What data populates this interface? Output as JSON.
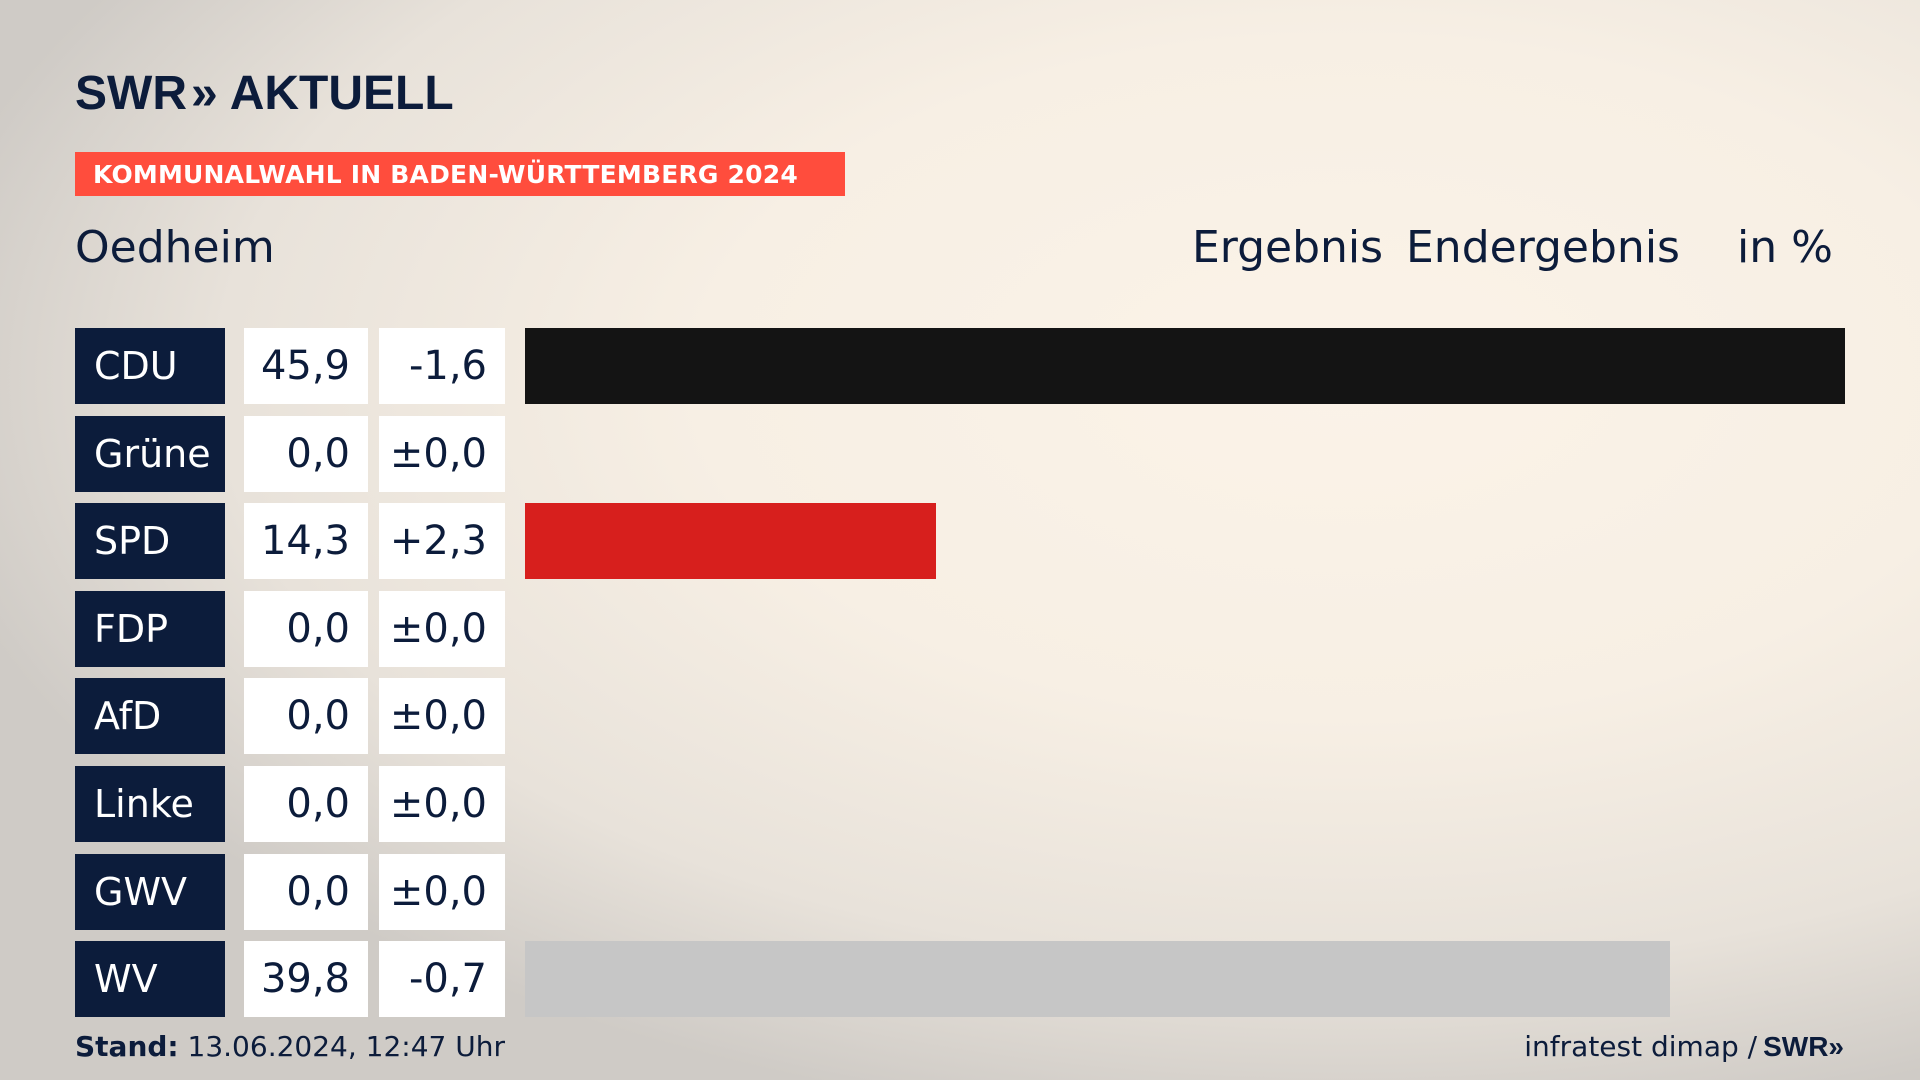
{
  "logo": {
    "brand": "SWR",
    "chevrons": "»",
    "product": "AKTUELL"
  },
  "banner": "KOMMUNALWAHL IN BADEN-WÜRTTEMBERG 2024",
  "place": "Oedheim",
  "headers": {
    "result": "Ergebnis",
    "final": "Endergebnis",
    "unit": "in %"
  },
  "footer": {
    "stand_label": "Stand:",
    "stand_value": "13.06.2024, 12:47 Uhr",
    "source": "infratest dimap /",
    "source_brand": "SWR",
    "source_chevrons": "»"
  },
  "chart_data": {
    "type": "bar",
    "orientation": "horizontal",
    "categories": [
      "CDU",
      "Grüne",
      "SPD",
      "FDP",
      "AfD",
      "Linke",
      "GWV",
      "WV"
    ],
    "values": [
      45.9,
      0.0,
      14.3,
      0.0,
      0.0,
      0.0,
      0.0,
      39.8
    ],
    "value_labels": [
      "45,9",
      "0,0",
      "14,3",
      "0,0",
      "0,0",
      "0,0",
      "0,0",
      "39,8"
    ],
    "diff_labels": [
      "-1,6",
      "±0,0",
      "+2,3",
      "±0,0",
      "±0,0",
      "±0,0",
      "±0,0",
      "-0,7"
    ],
    "colors": [
      "#141414",
      "#46962b",
      "#d71f1d",
      "#ffe300",
      "#00a2de",
      "#be3075",
      "#8c8c8c",
      "#c6c6c6"
    ],
    "xlim": [
      0,
      45.9
    ]
  }
}
